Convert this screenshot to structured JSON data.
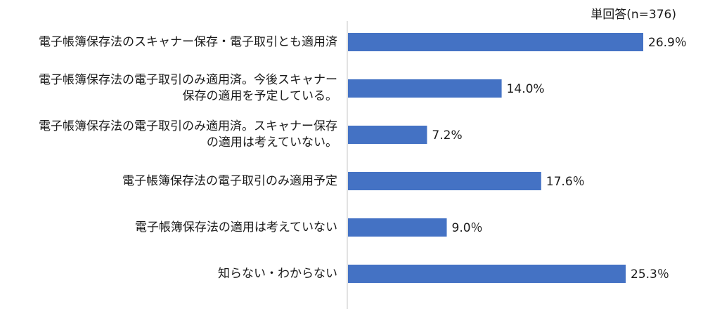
{
  "chart_data": {
    "type": "bar",
    "orientation": "horizontal",
    "note": "単回答(n=376)",
    "categories": [
      [
        "電子帳簿保存法のスキャナー保存・電子取引とも適用済"
      ],
      [
        "電子帳簿保存法の電子取引のみ適用済。今後スキャナー",
        "保存の適用を予定している。"
      ],
      [
        "電子帳簿保存法の電子取引のみ適用済。スキャナー保存",
        "の適用は考えていない。"
      ],
      [
        "電子帳簿保存法の電子取引のみ適用予定"
      ],
      [
        "電子帳簿保存法の適用は考えていない"
      ],
      [
        "知らない・わからない"
      ]
    ],
    "values": [
      26.9,
      14.0,
      7.2,
      17.6,
      9.0,
      25.3
    ],
    "value_labels": [
      "26.9％",
      "14.0%",
      "7.2%",
      "17.6％",
      "9.0％",
      "25.3％"
    ],
    "xlim": [
      0,
      30
    ],
    "grid": false,
    "bar_color": "#4472C4",
    "axis_color": "#D9D9D9"
  }
}
